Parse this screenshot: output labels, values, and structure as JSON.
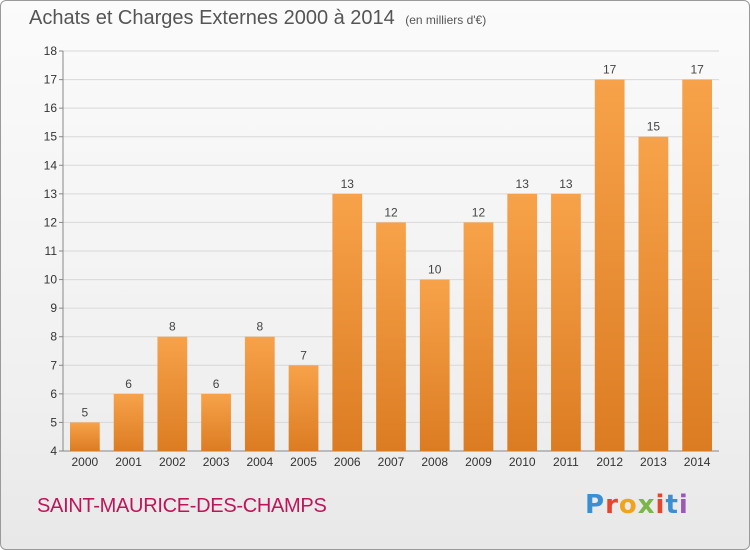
{
  "title": {
    "main": "Achats et Charges Externes 2000 à 2014",
    "unit": "(en milliers d'€)"
  },
  "location": "SAINT-MAURICE-DES-CHAMPS",
  "logo": {
    "text": "Proxiti",
    "letter_colors": [
      "#3a8fd4",
      "#e7452b",
      "#f2a31c",
      "#7ab648",
      "#e7452b",
      "#3a8fd4",
      "#9b59b6"
    ]
  },
  "colors": {
    "bar_light": "#f7a24a",
    "bar_dark": "#dc7c22",
    "grid": "#d8d8d8",
    "axis": "#888888"
  },
  "chart_data": {
    "type": "bar",
    "categories": [
      "2000",
      "2001",
      "2002",
      "2003",
      "2004",
      "2005",
      "2006",
      "2007",
      "2008",
      "2009",
      "2010",
      "2011",
      "2012",
      "2013",
      "2014"
    ],
    "values": [
      5,
      6,
      8,
      6,
      8,
      7,
      13,
      12,
      10,
      12,
      13,
      13,
      17,
      15,
      17
    ],
    "ylim": [
      4,
      18
    ],
    "yticks": [
      4,
      5,
      6,
      7,
      8,
      9,
      10,
      11,
      12,
      13,
      14,
      15,
      16,
      17,
      18
    ],
    "grid": true,
    "title": "Achats et Charges Externes 2000 à 2014",
    "xlabel": "",
    "ylabel": ""
  }
}
